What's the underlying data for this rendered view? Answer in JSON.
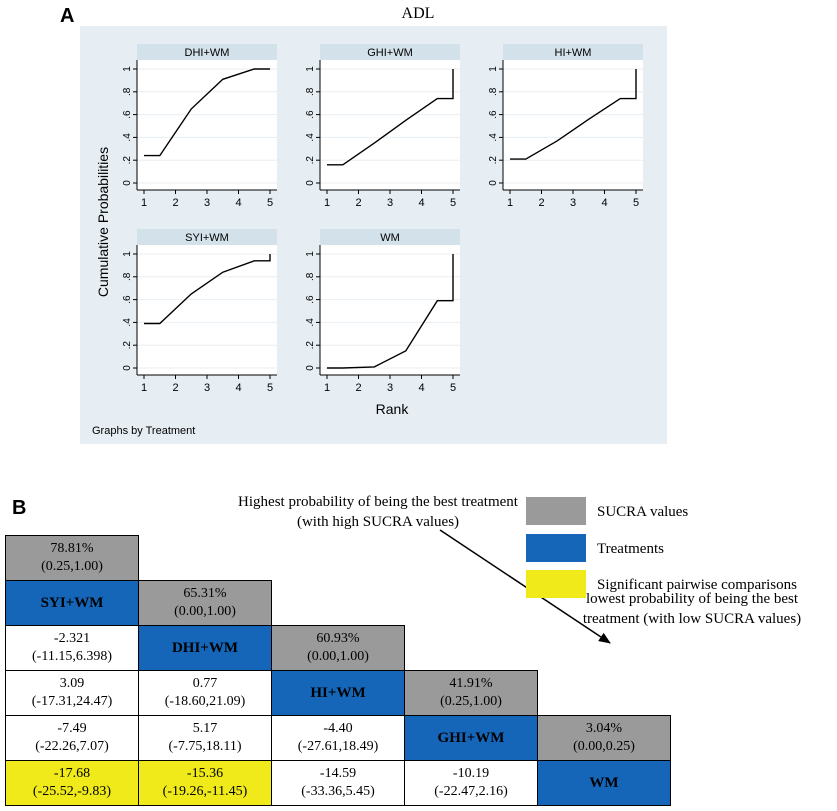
{
  "panel_a": {
    "label": "A",
    "title": "ADL",
    "ylabel": "Cumulative Probabilities",
    "xlabel": "Rank",
    "note": "Graphs by Treatment",
    "x_ticks": [
      "1",
      "2",
      "3",
      "4",
      "5"
    ],
    "y_ticks": [
      "0",
      ".2",
      ".4",
      ".6",
      ".8",
      "1"
    ]
  },
  "panel_b": {
    "label": "B",
    "legend": [
      {
        "label": "SUCRA values",
        "color": "#9a9a9a"
      },
      {
        "label": "Treatments",
        "color": "#1565b8"
      },
      {
        "label": "Significant pairwise comparisons",
        "color": "#f0ea1a"
      }
    ],
    "annotation_high": [
      "Highest probability of being the best treatment",
      "(with high SUCRA values)"
    ],
    "annotation_low": [
      "lowest probability of being the best",
      "treatment (with low SUCRA values)"
    ],
    "rows": [
      [
        {
          "type": "sucra",
          "lines": [
            "78.81%",
            "(0.25,1.00)"
          ]
        }
      ],
      [
        {
          "type": "treat",
          "lines": [
            "SYI+WM"
          ]
        },
        {
          "type": "sucra",
          "lines": [
            "65.31%",
            "(0.00,1.00)"
          ]
        }
      ],
      [
        {
          "type": "plain",
          "lines": [
            "-2.321",
            "(-11.15,6.398)"
          ]
        },
        {
          "type": "treat",
          "lines": [
            "DHI+WM"
          ]
        },
        {
          "type": "sucra",
          "lines": [
            "60.93%",
            "(0.00,1.00)"
          ]
        }
      ],
      [
        {
          "type": "plain",
          "lines": [
            "3.09",
            "(-17.31,24.47)"
          ]
        },
        {
          "type": "plain",
          "lines": [
            "0.77",
            "(-18.60,21.09)"
          ]
        },
        {
          "type": "treat",
          "lines": [
            "HI+WM"
          ]
        },
        {
          "type": "sucra",
          "lines": [
            "41.91%",
            "(0.25,1.00)"
          ]
        }
      ],
      [
        {
          "type": "plain",
          "lines": [
            "-7.49",
            "(-22.26,7.07)"
          ]
        },
        {
          "type": "plain",
          "lines": [
            "5.17",
            "(-7.75,18.11)"
          ]
        },
        {
          "type": "plain",
          "lines": [
            "-4.40",
            "(-27.61,18.49)"
          ]
        },
        {
          "type": "treat",
          "lines": [
            "GHI+WM"
          ]
        },
        {
          "type": "sucra",
          "lines": [
            "3.04%",
            "(0.00,0.25)"
          ]
        }
      ],
      [
        {
          "type": "sig",
          "lines": [
            "-17.68",
            "(-25.52,-9.83)"
          ]
        },
        {
          "type": "sig",
          "lines": [
            "-15.36",
            "(-19.26,-11.45)"
          ]
        },
        {
          "type": "plain",
          "lines": [
            "-14.59",
            "(-33.36,5.45)"
          ]
        },
        {
          "type": "plain",
          "lines": [
            "-10.19",
            "(-22.47,2.16)"
          ]
        },
        {
          "type": "treat",
          "lines": [
            "WM"
          ]
        }
      ]
    ]
  },
  "chart_data": {
    "type": "line",
    "title": "ADL",
    "xlabel": "Rank",
    "ylabel": "Cumulative Probabilities",
    "xlim": [
      1,
      5
    ],
    "ylim": [
      0,
      1
    ],
    "series": [
      {
        "name": "DHI+WM",
        "x": [
          1,
          1.5,
          2.5,
          3.5,
          4.5,
          5
        ],
        "values": [
          0.24,
          0.24,
          0.65,
          0.91,
          1.0,
          1.0
        ]
      },
      {
        "name": "GHI+WM",
        "x": [
          1,
          1.5,
          2.5,
          3.5,
          4.5,
          5,
          5
        ],
        "values": [
          0.16,
          0.16,
          0.35,
          0.55,
          0.74,
          0.74,
          1.0
        ]
      },
      {
        "name": "HI+WM",
        "x": [
          1,
          1.5,
          2.5,
          3.5,
          4.5,
          5,
          5
        ],
        "values": [
          0.21,
          0.21,
          0.37,
          0.56,
          0.74,
          0.74,
          1.0
        ]
      },
      {
        "name": "SYI+WM",
        "x": [
          1,
          1.5,
          2.5,
          3.5,
          4.5,
          5,
          5
        ],
        "values": [
          0.39,
          0.39,
          0.65,
          0.84,
          0.94,
          0.94,
          1.0
        ]
      },
      {
        "name": "WM",
        "x": [
          1,
          1.5,
          2.5,
          3.5,
          4.5,
          5,
          5
        ],
        "values": [
          0.0,
          0.0,
          0.01,
          0.15,
          0.59,
          0.59,
          1.0
        ]
      }
    ]
  }
}
